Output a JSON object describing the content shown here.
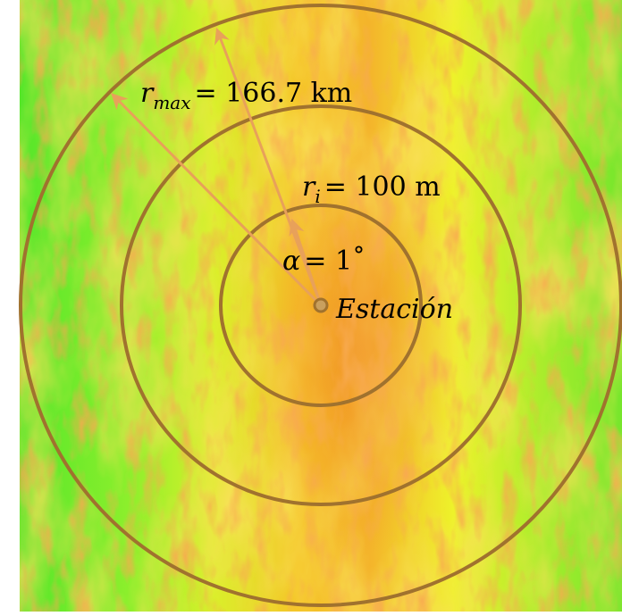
{
  "colors": {
    "background": "#ffffff",
    "ring": "#a0722e",
    "arrow": "#e8a15a",
    "station": "#a0722e",
    "terrain_low": "#5fe62e",
    "terrain_mid": "#e8f12a",
    "terrain_high": "#f0711e"
  },
  "labels": {
    "rmax_var": "r",
    "rmax_sub": "max",
    "rmax_eq": "= 166.7 km",
    "ri_var": "r",
    "ri_sub": "i",
    "ri_eq": "= 100 m",
    "alpha_var": "α",
    "alpha_eq": "= 1˚",
    "station": "Estación"
  },
  "icons": {
    "station_marker": "circle-dot-icon",
    "arrowheads": "arrowhead-icon"
  }
}
